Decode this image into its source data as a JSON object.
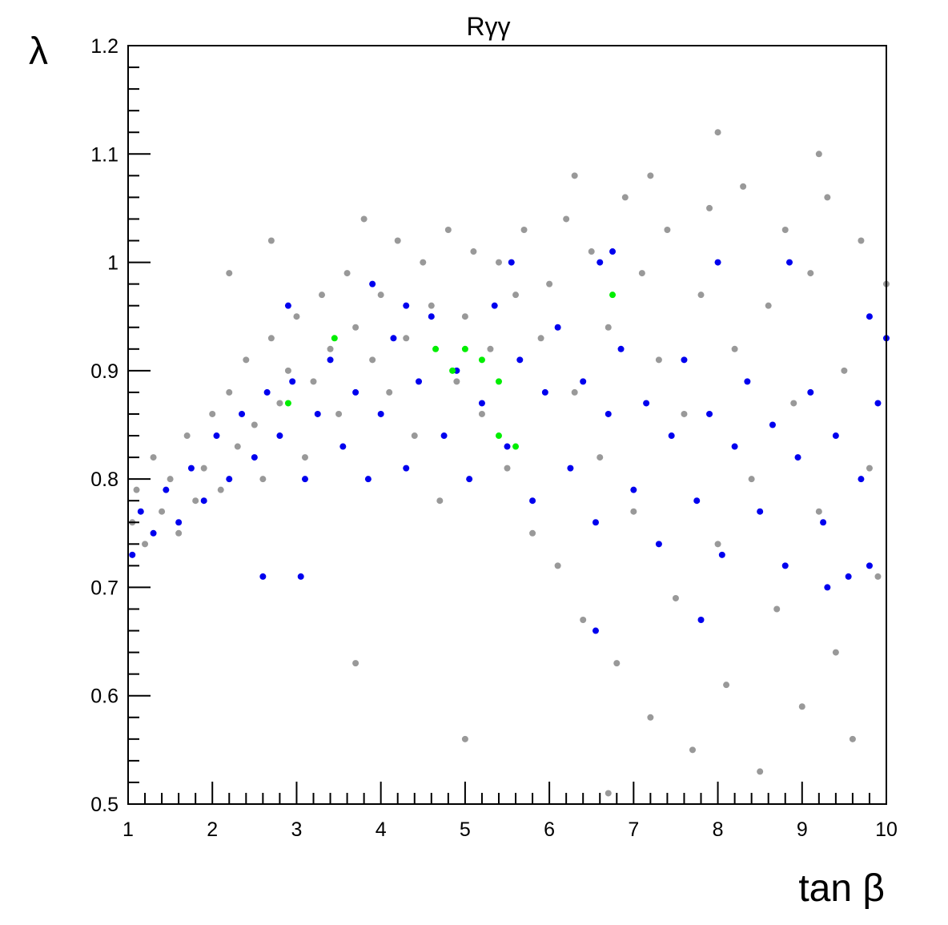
{
  "chart_data": {
    "type": "scatter",
    "title": "Rγγ",
    "xlabel": "tan β",
    "ylabel": "λ",
    "xlim": [
      1,
      10
    ],
    "ylim": [
      0.5,
      1.2
    ],
    "x_ticks": [
      "1",
      "2",
      "3",
      "4",
      "5",
      "6",
      "7",
      "8",
      "9",
      "10"
    ],
    "y_ticks": [
      "0.5",
      "0.6",
      "0.7",
      "0.8",
      "0.9",
      "1",
      "1.1",
      "1.2"
    ],
    "grid": false,
    "colors": {
      "grey": "#999999",
      "blue": "#0000ee",
      "green": "#00ee00"
    },
    "series": [
      {
        "color": "grey",
        "points": [
          [
            1.05,
            0.76
          ],
          [
            1.1,
            0.79
          ],
          [
            1.2,
            0.74
          ],
          [
            1.3,
            0.82
          ],
          [
            1.4,
            0.77
          ],
          [
            1.5,
            0.8
          ],
          [
            1.6,
            0.75
          ],
          [
            1.7,
            0.84
          ],
          [
            1.8,
            0.78
          ],
          [
            1.9,
            0.81
          ],
          [
            2.0,
            0.86
          ],
          [
            2.1,
            0.79
          ],
          [
            2.2,
            0.88
          ],
          [
            2.3,
            0.83
          ],
          [
            2.4,
            0.91
          ],
          [
            2.5,
            0.85
          ],
          [
            2.6,
            0.8
          ],
          [
            2.7,
            0.93
          ],
          [
            2.8,
            0.87
          ],
          [
            2.9,
            0.9
          ],
          [
            3.0,
            0.95
          ],
          [
            3.1,
            0.82
          ],
          [
            3.2,
            0.89
          ],
          [
            3.3,
            0.97
          ],
          [
            3.4,
            0.92
          ],
          [
            3.5,
            0.86
          ],
          [
            3.6,
            0.99
          ],
          [
            3.7,
            0.94
          ],
          [
            3.8,
            1.04
          ],
          [
            3.9,
            0.91
          ],
          [
            4.0,
            0.97
          ],
          [
            4.1,
            0.88
          ],
          [
            4.2,
            1.02
          ],
          [
            4.3,
            0.93
          ],
          [
            4.4,
            0.84
          ],
          [
            4.5,
            1.0
          ],
          [
            4.6,
            0.96
          ],
          [
            4.7,
            0.78
          ],
          [
            4.8,
            1.03
          ],
          [
            4.9,
            0.89
          ],
          [
            5.0,
            0.95
          ],
          [
            5.1,
            1.01
          ],
          [
            5.2,
            0.86
          ],
          [
            5.3,
            0.92
          ],
          [
            5.4,
            1.0
          ],
          [
            5.5,
            0.81
          ],
          [
            5.6,
            0.97
          ],
          [
            5.7,
            1.03
          ],
          [
            5.8,
            0.75
          ],
          [
            5.9,
            0.93
          ],
          [
            6.0,
            0.98
          ],
          [
            6.1,
            0.72
          ],
          [
            6.2,
            1.04
          ],
          [
            6.3,
            0.88
          ],
          [
            6.4,
            0.67
          ],
          [
            6.5,
            1.01
          ],
          [
            6.6,
            0.82
          ],
          [
            6.7,
            0.94
          ],
          [
            6.8,
            0.63
          ],
          [
            6.9,
            1.06
          ],
          [
            7.0,
            0.77
          ],
          [
            7.1,
            0.99
          ],
          [
            7.2,
            0.58
          ],
          [
            7.3,
            0.91
          ],
          [
            7.4,
            1.03
          ],
          [
            7.5,
            0.69
          ],
          [
            7.6,
            0.86
          ],
          [
            7.7,
            0.55
          ],
          [
            7.8,
            0.97
          ],
          [
            7.9,
            1.05
          ],
          [
            8.0,
            0.74
          ],
          [
            8.1,
            0.61
          ],
          [
            8.2,
            0.92
          ],
          [
            8.3,
            1.07
          ],
          [
            8.4,
            0.8
          ],
          [
            8.5,
            0.53
          ],
          [
            8.6,
            0.96
          ],
          [
            8.7,
            0.68
          ],
          [
            8.8,
            1.03
          ],
          [
            8.9,
            0.87
          ],
          [
            9.0,
            0.59
          ],
          [
            9.1,
            0.99
          ],
          [
            9.2,
            0.77
          ],
          [
            9.3,
            1.06
          ],
          [
            9.4,
            0.64
          ],
          [
            9.5,
            0.9
          ],
          [
            9.6,
            0.56
          ],
          [
            9.7,
            1.02
          ],
          [
            9.8,
            0.81
          ],
          [
            9.9,
            0.71
          ],
          [
            10.0,
            0.98
          ],
          [
            8.0,
            1.12
          ],
          [
            9.2,
            1.1
          ],
          [
            7.2,
            1.08
          ],
          [
            6.3,
            1.08
          ],
          [
            2.7,
            1.02
          ],
          [
            2.2,
            0.99
          ],
          [
            3.7,
            0.63
          ],
          [
            5.0,
            0.56
          ],
          [
            6.7,
            0.51
          ]
        ]
      },
      {
        "color": "blue",
        "points": [
          [
            1.05,
            0.73
          ],
          [
            1.15,
            0.77
          ],
          [
            1.3,
            0.75
          ],
          [
            1.45,
            0.79
          ],
          [
            1.6,
            0.76
          ],
          [
            1.75,
            0.81
          ],
          [
            1.9,
            0.78
          ],
          [
            2.05,
            0.84
          ],
          [
            2.2,
            0.8
          ],
          [
            2.35,
            0.86
          ],
          [
            2.5,
            0.82
          ],
          [
            2.65,
            0.88
          ],
          [
            2.8,
            0.84
          ],
          [
            2.95,
            0.89
          ],
          [
            3.1,
            0.8
          ],
          [
            3.25,
            0.86
          ],
          [
            3.4,
            0.91
          ],
          [
            3.55,
            0.83
          ],
          [
            3.7,
            0.88
          ],
          [
            3.85,
            0.8
          ],
          [
            4.0,
            0.86
          ],
          [
            4.15,
            0.93
          ],
          [
            4.3,
            0.81
          ],
          [
            4.45,
            0.89
          ],
          [
            4.6,
            0.95
          ],
          [
            4.75,
            0.84
          ],
          [
            4.9,
            0.9
          ],
          [
            5.05,
            0.8
          ],
          [
            5.2,
            0.87
          ],
          [
            5.35,
            0.96
          ],
          [
            5.5,
            0.83
          ],
          [
            5.65,
            0.91
          ],
          [
            5.8,
            0.78
          ],
          [
            5.95,
            0.88
          ],
          [
            6.1,
            0.94
          ],
          [
            6.25,
            0.81
          ],
          [
            6.4,
            0.89
          ],
          [
            6.55,
            0.76
          ],
          [
            6.7,
            0.86
          ],
          [
            6.85,
            0.92
          ],
          [
            7.0,
            0.79
          ],
          [
            7.15,
            0.87
          ],
          [
            7.3,
            0.74
          ],
          [
            7.45,
            0.84
          ],
          [
            7.6,
            0.91
          ],
          [
            7.75,
            0.78
          ],
          [
            7.9,
            0.86
          ],
          [
            8.05,
            0.73
          ],
          [
            8.2,
            0.83
          ],
          [
            8.35,
            0.89
          ],
          [
            8.5,
            0.77
          ],
          [
            8.65,
            0.85
          ],
          [
            8.8,
            0.72
          ],
          [
            8.95,
            0.82
          ],
          [
            9.1,
            0.88
          ],
          [
            9.25,
            0.76
          ],
          [
            9.4,
            0.84
          ],
          [
            9.55,
            0.71
          ],
          [
            9.7,
            0.8
          ],
          [
            9.9,
            0.87
          ],
          [
            6.6,
            1.0
          ],
          [
            6.75,
            1.01
          ],
          [
            8.0,
            1.0
          ],
          [
            8.85,
            1.0
          ],
          [
            5.55,
            1.0
          ],
          [
            3.9,
            0.98
          ],
          [
            6.55,
            0.66
          ],
          [
            7.8,
            0.67
          ],
          [
            2.6,
            0.71
          ],
          [
            3.05,
            0.71
          ],
          [
            9.3,
            0.7
          ],
          [
            9.8,
            0.72
          ],
          [
            10.0,
            0.93
          ],
          [
            9.8,
            0.95
          ],
          [
            2.9,
            0.96
          ],
          [
            4.3,
            0.96
          ]
        ]
      },
      {
        "color": "green",
        "points": [
          [
            2.9,
            0.87
          ],
          [
            3.45,
            0.93
          ],
          [
            4.65,
            0.92
          ],
          [
            4.85,
            0.9
          ],
          [
            5.0,
            0.92
          ],
          [
            5.2,
            0.91
          ],
          [
            5.4,
            0.89
          ],
          [
            5.4,
            0.84
          ],
          [
            5.6,
            0.83
          ],
          [
            6.75,
            0.97
          ]
        ]
      }
    ]
  }
}
